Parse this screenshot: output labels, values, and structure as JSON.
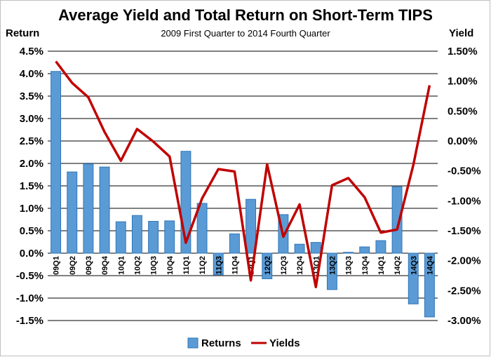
{
  "chart_data": {
    "type": "bar",
    "title": "Average Yield and Total Return on Short-Term TIPS",
    "subtitle": "2009 First Quarter to 2014 Fourth Quarter",
    "ylabel": "Return",
    "y2label": "Yield",
    "categories": [
      "09Q1",
      "09Q2",
      "09Q3",
      "09Q4",
      "10Q1",
      "10Q2",
      "10Q3",
      "10Q4",
      "11Q1",
      "11Q2",
      "11Q3",
      "11Q4",
      "12Q1",
      "12Q2",
      "12Q3",
      "12Q4",
      "13Q1",
      "13Q2",
      "13Q3",
      "13Q4",
      "14Q1",
      "14Q2",
      "14Q3",
      "14Q4"
    ],
    "ylim": [
      -1.5,
      4.5
    ],
    "y2lim": [
      -3.0,
      1.5
    ],
    "yticks": [
      "-1.5%",
      "-1.0%",
      "-0.5%",
      "0.0%",
      "0.5%",
      "1.0%",
      "1.5%",
      "2.0%",
      "2.5%",
      "3.0%",
      "3.5%",
      "4.0%",
      "4.5%"
    ],
    "y2ticks": [
      "-3.00%",
      "-2.50%",
      "-2.00%",
      "-1.50%",
      "-1.00%",
      "-0.50%",
      "0.00%",
      "0.50%",
      "1.00%",
      "1.50%"
    ],
    "grid": true,
    "legend_position": "bottom",
    "series": [
      {
        "name": "Returns",
        "type": "bar",
        "axis": "left",
        "color": "#5B9BD5",
        "values": [
          4.05,
          1.81,
          1.99,
          1.92,
          0.7,
          0.84,
          0.71,
          0.72,
          2.27,
          1.11,
          -0.48,
          0.43,
          1.2,
          -0.57,
          0.86,
          0.2,
          0.24,
          -0.81,
          0.02,
          0.14,
          0.28,
          1.48,
          -1.13,
          -1.42
        ]
      },
      {
        "name": "Yields",
        "type": "line",
        "axis": "right",
        "color": "#C00000",
        "values": [
          1.33,
          0.97,
          0.73,
          0.15,
          -0.33,
          0.2,
          -0.01,
          -0.26,
          -1.7,
          -0.96,
          -0.47,
          -0.51,
          -2.33,
          -0.39,
          -1.6,
          -1.06,
          -2.44,
          -0.74,
          -0.62,
          -0.94,
          -1.53,
          -1.48,
          -0.4,
          0.93
        ]
      }
    ]
  }
}
